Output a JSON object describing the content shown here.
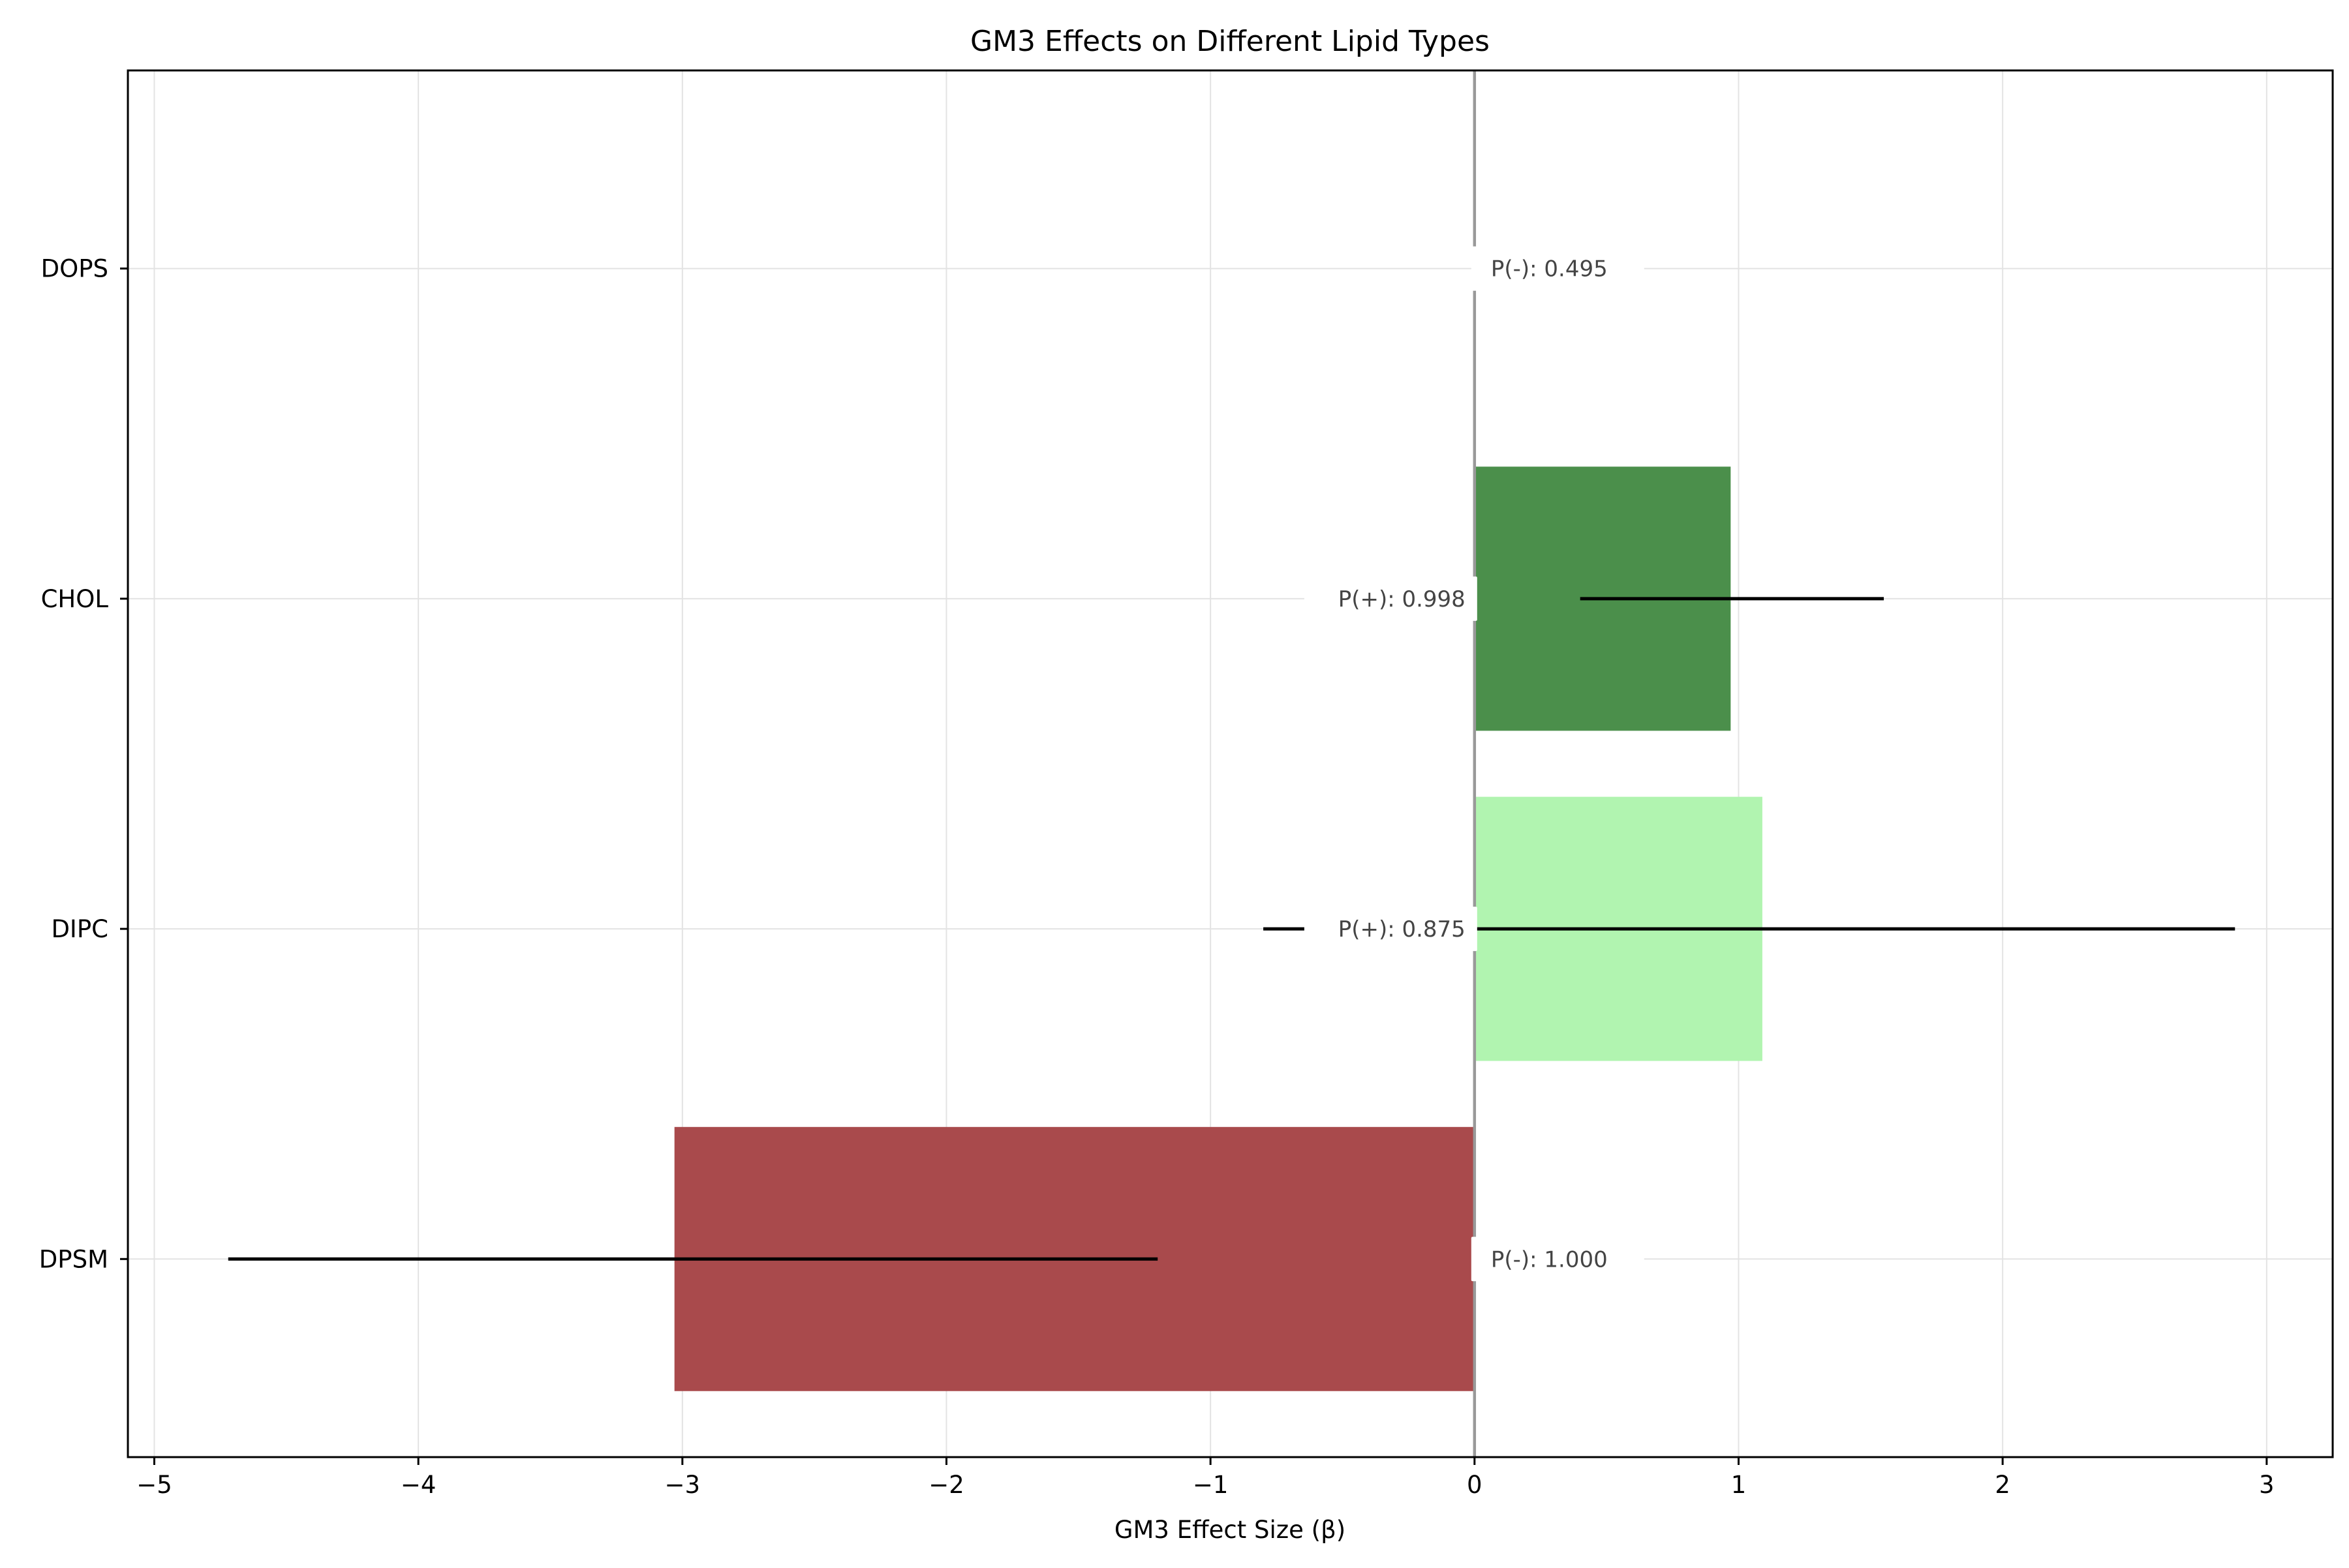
{
  "chart_data": {
    "type": "bar",
    "orientation": "horizontal",
    "title": "GM3 Effects on Different Lipid Types",
    "xlabel": "GM3 Effect Size (β)",
    "ylabel": "",
    "xlim": [
      -5.1,
      3.25
    ],
    "xticks": [
      -5,
      -4,
      -3,
      -2,
      -1,
      0,
      1,
      2,
      3
    ],
    "xtick_labels": [
      "−5",
      "−4",
      "−3",
      "−2",
      "−1",
      "0",
      "1",
      "2",
      "3"
    ],
    "grid": true,
    "categories": [
      "DPSM",
      "DIPC",
      "CHOL",
      "DOPS"
    ],
    "values": [
      -3.03,
      1.09,
      0.97,
      0.0
    ],
    "error_low": [
      -4.72,
      -0.8,
      0.4,
      null
    ],
    "error_high": [
      -1.2,
      2.88,
      1.55,
      null
    ],
    "annotations": [
      "P(-): 1.000",
      "P(+): 0.875",
      "P(+): 0.998",
      "P(-): 0.495"
    ],
    "colors": [
      "#a94a4c",
      "#b1f4b0",
      "#4b8f4b",
      "#ffffff"
    ],
    "zero_line_color": "#999999"
  }
}
